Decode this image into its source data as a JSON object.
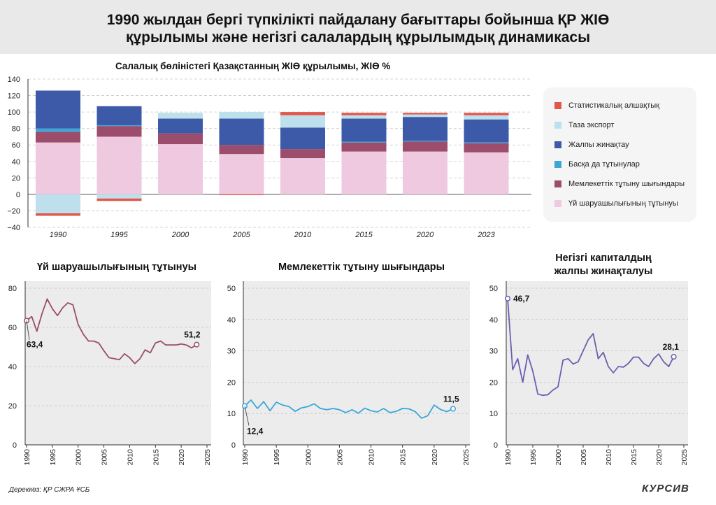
{
  "header": {
    "title_line1": "1990 жылдан бергі түпкілікті пайдалану бағыттары бойынша ҚР ЖІӨ",
    "title_line2": "құрылымы және негізгі салалардың құрылымдық динамикасы"
  },
  "colors": {
    "discrepancy": "#e2574c",
    "net_export": "#bde0ec",
    "gross_accumulation": "#3d5aa8",
    "other_consumers": "#3aa7d8",
    "government": "#9b4d6b",
    "household": "#efc9e0",
    "line_household": "#9b4d6b",
    "line_government": "#3aa7d8",
    "line_capital": "#6b5fb0",
    "panel_bg": "#ececec",
    "header_bg": "#e9e9e9"
  },
  "legend": {
    "items": [
      {
        "label": "Статистикалық алшақтық",
        "color": "#e2574c"
      },
      {
        "label": "Таза экспорт",
        "color": "#bde0ec"
      },
      {
        "label": "Жалпы жинақтау",
        "color": "#3d5aa8"
      },
      {
        "label": "Басқа да тұтынулар",
        "color": "#3aa7d8"
      },
      {
        "label": "Мемлекеттік тұтыну шығындары",
        "color": "#9b4d6b"
      },
      {
        "label": "Үй шаруашылығының тұтынуы",
        "color": "#efc9e0"
      }
    ]
  },
  "footer": {
    "source": "Дереккөз: ҚР СЖРА ҰСБ",
    "brand": "КУРСИВ"
  },
  "chart_data": [
    {
      "type": "bar",
      "title": "Салалық бөліністегі Қазақстанның ЖІӨ құрылымы, ЖІӨ %",
      "stacked": true,
      "categories": [
        "1990",
        "1995",
        "2000",
        "2005",
        "2010",
        "2015",
        "2020",
        "2023"
      ],
      "ylim": [
        -40,
        140
      ],
      "yticks": [
        -40,
        -20,
        0,
        20,
        40,
        60,
        80,
        100,
        120,
        140
      ],
      "grid": true,
      "legend_position": "right",
      "series": [
        {
          "name": "Үй шаруашылығының тұтынуы",
          "color": "#efc9e0",
          "values": [
            63,
            70,
            61,
            49,
            44,
            52,
            52,
            51
          ]
        },
        {
          "name": "Мемлекеттік тұтыну шығындары",
          "color": "#9b4d6b",
          "values": [
            13,
            13,
            13,
            11,
            11,
            11,
            12,
            11
          ]
        },
        {
          "name": "Басқа да тұтынулар",
          "color": "#3aa7d8",
          "values": [
            4,
            1,
            0,
            0,
            0,
            1,
            1,
            1
          ]
        },
        {
          "name": "Жалпы жинақтау",
          "color": "#3d5aa8",
          "values": [
            46,
            23,
            18,
            32,
            26,
            28,
            29,
            28
          ]
        },
        {
          "name": "Таза экспорт",
          "color": "#bde0ec",
          "values": [
            -23,
            -5,
            7,
            8,
            15,
            4,
            3,
            5
          ]
        },
        {
          "name": "Статистикалық алшақтық",
          "color": "#e2574c",
          "values": [
            -3,
            -3,
            0,
            -1,
            4,
            3,
            2,
            3
          ]
        }
      ]
    },
    {
      "type": "line",
      "title": "Үй шаруашылығының тұтынуы",
      "xlim": [
        1990,
        2025
      ],
      "xticks": [
        1990,
        1995,
        2000,
        2005,
        2010,
        2015,
        2020,
        2025
      ],
      "ylim": [
        0,
        80
      ],
      "yticks": [
        0,
        20,
        40,
        60,
        80
      ],
      "color": "#9b4d6b",
      "x": [
        1990,
        1991,
        1992,
        1993,
        1994,
        1995,
        1996,
        1997,
        1998,
        1999,
        2000,
        2001,
        2002,
        2003,
        2004,
        2005,
        2006,
        2007,
        2008,
        2009,
        2010,
        2011,
        2012,
        2013,
        2014,
        2015,
        2016,
        2017,
        2018,
        2019,
        2020,
        2021,
        2022,
        2023
      ],
      "y": [
        63.4,
        65.5,
        58,
        67,
        74.5,
        69.5,
        66,
        70,
        72.5,
        71.5,
        61.5,
        56.5,
        53,
        53,
        52,
        48,
        44.5,
        44,
        43.5,
        46.5,
        44.5,
        41.5,
        44,
        48.5,
        47,
        52,
        53,
        51,
        51,
        51,
        51.5,
        51,
        49.5,
        51.2
      ],
      "annotations": [
        {
          "x": 1990,
          "y": 63.4,
          "label": "63,4"
        },
        {
          "x": 2023,
          "y": 51.2,
          "label": "51,2"
        }
      ]
    },
    {
      "type": "line",
      "title": "Мемлекеттік тұтыну шығындары",
      "xlim": [
        1990,
        2025
      ],
      "xticks": [
        1990,
        1995,
        2000,
        2005,
        2010,
        2015,
        2020,
        2025
      ],
      "ylim": [
        0,
        50
      ],
      "yticks": [
        0,
        10,
        20,
        30,
        40,
        50
      ],
      "color": "#3aa7d8",
      "x": [
        1990,
        1991,
        1992,
        1993,
        1994,
        1995,
        1996,
        1997,
        1998,
        1999,
        2000,
        2001,
        2002,
        2003,
        2004,
        2005,
        2006,
        2007,
        2008,
        2009,
        2010,
        2011,
        2012,
        2013,
        2014,
        2015,
        2016,
        2017,
        2018,
        2019,
        2020,
        2021,
        2022,
        2023
      ],
      "y": [
        12.4,
        14.3,
        11.6,
        13.8,
        10.9,
        13.6,
        12.7,
        12.2,
        10.7,
        11.8,
        12.2,
        13.1,
        11.6,
        11.2,
        11.6,
        11.2,
        10.3,
        11.2,
        10.1,
        11.7,
        10.9,
        10.5,
        11.6,
        10.3,
        10.7,
        11.6,
        11.5,
        10.6,
        8.5,
        9.3,
        12.7,
        11.3,
        10.6,
        11.5
      ],
      "annotations": [
        {
          "x": 1990,
          "y": 12.4,
          "label": "12,4"
        },
        {
          "x": 2023,
          "y": 11.5,
          "label": "11,5"
        }
      ]
    },
    {
      "type": "line",
      "title": "Негізгі капиталдың жалпы жинақталуы",
      "title_line1": "Негізгі капиталдың",
      "title_line2": "жалпы жинақталуы",
      "xlim": [
        1990,
        2025
      ],
      "xticks": [
        1990,
        1995,
        2000,
        2005,
        2010,
        2015,
        2020,
        2025
      ],
      "ylim": [
        0,
        50
      ],
      "yticks": [
        0,
        10,
        20,
        30,
        40,
        50
      ],
      "color": "#6b5fb0",
      "x": [
        1990,
        1991,
        1992,
        1993,
        1994,
        1995,
        1996,
        1997,
        1998,
        1999,
        2000,
        2001,
        2002,
        2003,
        2004,
        2005,
        2006,
        2007,
        2008,
        2009,
        2010,
        2011,
        2012,
        2013,
        2014,
        2015,
        2016,
        2017,
        2018,
        2019,
        2020,
        2021,
        2022,
        2023
      ],
      "y": [
        46.7,
        24,
        27.5,
        20,
        28.7,
        23.5,
        16.2,
        15.8,
        16,
        17.5,
        18.5,
        27,
        27.5,
        25.8,
        26.5,
        30,
        33.5,
        35.5,
        27.5,
        29.5,
        25,
        23,
        25,
        24.8,
        26,
        28,
        28,
        26,
        25,
        27.5,
        29,
        26.5,
        25,
        28.1
      ],
      "annotations": [
        {
          "x": 1990,
          "y": 46.7,
          "label": "46,7"
        },
        {
          "x": 2023,
          "y": 28.1,
          "label": "28,1"
        }
      ]
    }
  ]
}
